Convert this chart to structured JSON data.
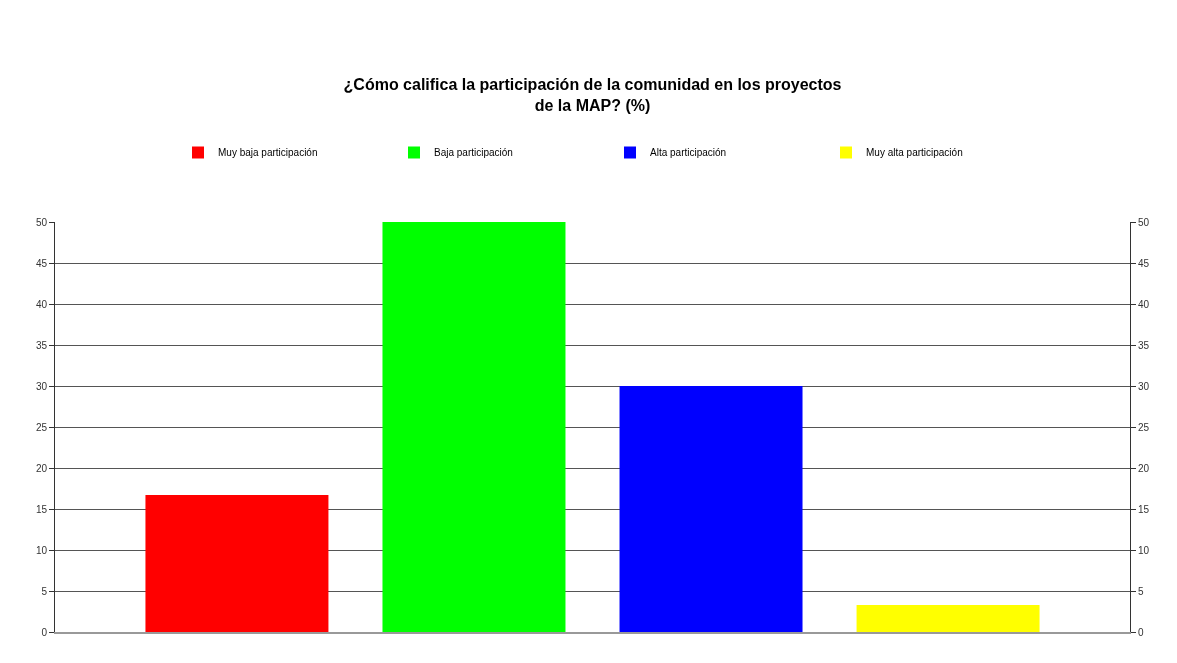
{
  "chart_data": {
    "type": "bar",
    "title": "¿Cómo califica la participación de la comunidad en los proyectos\nde la MAP? (%)",
    "categories": [
      null
    ],
    "series": [
      {
        "name": "Muy baja participación",
        "color": "#ff0000",
        "values": [
          16.7
        ]
      },
      {
        "name": "Baja participación",
        "color": "#00ff00",
        "values": [
          50
        ]
      },
      {
        "name": "Alta participación",
        "color": "#0000ff",
        "values": [
          30
        ]
      },
      {
        "name": "Muy alta participación",
        "color": "#ffff00",
        "values": [
          3.3
        ]
      }
    ],
    "ylim": [
      0,
      50
    ],
    "yticks": [
      0,
      5,
      10,
      15,
      20,
      25,
      30,
      35,
      40,
      45,
      50
    ],
    "y2lim": [
      0,
      50
    ],
    "y2ticks": [
      0,
      5,
      10,
      15,
      20,
      25,
      30,
      35,
      40,
      45,
      50
    ],
    "grid": "y",
    "legend": "top",
    "tick_labels": "y"
  }
}
